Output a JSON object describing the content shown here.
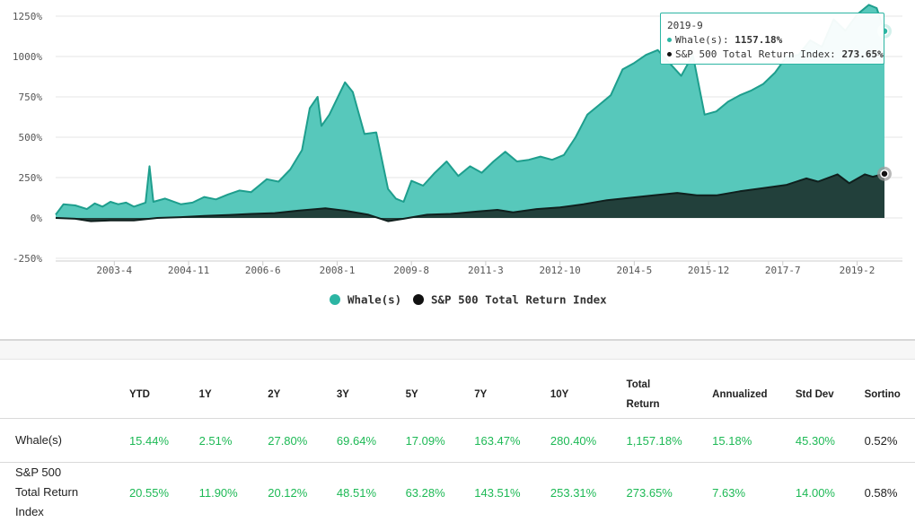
{
  "chart_data": {
    "type": "area",
    "x_tick_labels": [
      "2003-4",
      "2004-11",
      "2006-6",
      "2008-1",
      "2009-8",
      "2011-3",
      "2012-10",
      "2014-5",
      "2015-12",
      "2017-7",
      "2019-2"
    ],
    "y_tick_labels": [
      "1250%",
      "1000%",
      "750%",
      "500%",
      "250%",
      "0%",
      "-250%"
    ],
    "ylim": [
      -250,
      1250
    ],
    "grid": true,
    "legend_position": "bottom-center",
    "series": [
      {
        "name": "Whale(s)",
        "color": "#2cb5a3",
        "points": [
          [
            "2002-1",
            20
          ],
          [
            "2002-3",
            85
          ],
          [
            "2002-6",
            78
          ],
          [
            "2002-9",
            55
          ],
          [
            "2002-11",
            90
          ],
          [
            "2003-1",
            70
          ],
          [
            "2003-3",
            100
          ],
          [
            "2003-5",
            85
          ],
          [
            "2003-7",
            95
          ],
          [
            "2003-9",
            70
          ],
          [
            "2003-12",
            95
          ],
          [
            "2004-1",
            320
          ],
          [
            "2004-2",
            100
          ],
          [
            "2004-5",
            120
          ],
          [
            "2004-9",
            85
          ],
          [
            "2004-12",
            95
          ],
          [
            "2005-3",
            130
          ],
          [
            "2005-6",
            115
          ],
          [
            "2005-9",
            145
          ],
          [
            "2005-12",
            170
          ],
          [
            "2006-3",
            160
          ],
          [
            "2006-5",
            200
          ],
          [
            "2006-7",
            240
          ],
          [
            "2006-10",
            225
          ],
          [
            "2007-1",
            300
          ],
          [
            "2007-4",
            420
          ],
          [
            "2007-6",
            680
          ],
          [
            "2007-8",
            750
          ],
          [
            "2007-9",
            570
          ],
          [
            "2007-11",
            640
          ],
          [
            "2008-1",
            740
          ],
          [
            "2008-3",
            840
          ],
          [
            "2008-5",
            780
          ],
          [
            "2008-8",
            520
          ],
          [
            "2008-11",
            530
          ],
          [
            "2009-2",
            180
          ],
          [
            "2009-4",
            120
          ],
          [
            "2009-6",
            100
          ],
          [
            "2009-8",
            230
          ],
          [
            "2009-11",
            200
          ],
          [
            "2010-2",
            280
          ],
          [
            "2010-5",
            350
          ],
          [
            "2010-8",
            260
          ],
          [
            "2010-11",
            320
          ],
          [
            "2011-2",
            280
          ],
          [
            "2011-5",
            350
          ],
          [
            "2011-8",
            410
          ],
          [
            "2011-11",
            350
          ],
          [
            "2012-2",
            360
          ],
          [
            "2012-5",
            380
          ],
          [
            "2012-8",
            360
          ],
          [
            "2012-11",
            390
          ],
          [
            "2013-2",
            500
          ],
          [
            "2013-5",
            640
          ],
          [
            "2013-8",
            700
          ],
          [
            "2013-11",
            760
          ],
          [
            "2014-2",
            920
          ],
          [
            "2014-5",
            960
          ],
          [
            "2014-8",
            1010
          ],
          [
            "2014-11",
            1040
          ],
          [
            "2015-2",
            960
          ],
          [
            "2015-5",
            880
          ],
          [
            "2015-8",
            1010
          ],
          [
            "2015-11",
            640
          ],
          [
            "2016-2",
            660
          ],
          [
            "2016-5",
            720
          ],
          [
            "2016-8",
            760
          ],
          [
            "2016-11",
            790
          ],
          [
            "2017-2",
            830
          ],
          [
            "2017-5",
            900
          ],
          [
            "2017-8",
            1000
          ],
          [
            "2017-11",
            1010
          ],
          [
            "2018-2",
            1100
          ],
          [
            "2018-5",
            1060
          ],
          [
            "2018-8",
            1230
          ],
          [
            "2018-11",
            1160
          ],
          [
            "2019-2",
            1260
          ],
          [
            "2019-5",
            1320
          ],
          [
            "2019-7",
            1300
          ],
          [
            "2019-9",
            1157.18
          ]
        ]
      },
      {
        "name": "S&P 500 Total Return Index",
        "color": "#17302c",
        "points": [
          [
            "2002-1",
            0
          ],
          [
            "2002-6",
            -5
          ],
          [
            "2002-10",
            -20
          ],
          [
            "2003-3",
            -15
          ],
          [
            "2003-9",
            -15
          ],
          [
            "2004-3",
            0
          ],
          [
            "2004-9",
            5
          ],
          [
            "2005-3",
            12
          ],
          [
            "2005-9",
            18
          ],
          [
            "2006-3",
            25
          ],
          [
            "2006-9",
            30
          ],
          [
            "2007-3",
            45
          ],
          [
            "2007-10",
            60
          ],
          [
            "2008-3",
            45
          ],
          [
            "2008-9",
            20
          ],
          [
            "2009-2",
            -20
          ],
          [
            "2009-6",
            -5
          ],
          [
            "2009-12",
            20
          ],
          [
            "2010-6",
            25
          ],
          [
            "2011-1",
            40
          ],
          [
            "2011-6",
            50
          ],
          [
            "2011-10",
            35
          ],
          [
            "2012-4",
            55
          ],
          [
            "2012-10",
            65
          ],
          [
            "2013-4",
            85
          ],
          [
            "2013-10",
            110
          ],
          [
            "2014-4",
            125
          ],
          [
            "2014-10",
            140
          ],
          [
            "2015-4",
            155
          ],
          [
            "2015-9",
            140
          ],
          [
            "2016-2",
            140
          ],
          [
            "2016-8",
            165
          ],
          [
            "2017-2",
            185
          ],
          [
            "2017-8",
            205
          ],
          [
            "2018-1",
            245
          ],
          [
            "2018-4",
            225
          ],
          [
            "2018-9",
            270
          ],
          [
            "2018-12",
            215
          ],
          [
            "2019-4",
            270
          ],
          [
            "2019-6",
            255
          ],
          [
            "2019-9",
            273.65
          ]
        ]
      }
    ]
  },
  "tooltip": {
    "date": "2019-9",
    "rows": [
      {
        "label": "Whale(s): ",
        "value": "1157.18%",
        "color": "#2cb5a3"
      },
      {
        "label": "S&P 500 Total Return Index: ",
        "value": "273.65%",
        "color": "#111111"
      }
    ]
  },
  "table": {
    "headers": [
      "",
      "YTD",
      "1Y",
      "2Y",
      "3Y",
      "5Y",
      "7Y",
      "10Y",
      "Total\nReturn",
      "Annualized",
      "Std Dev",
      "Sortino"
    ],
    "rows": [
      {
        "name": "Whale(s)",
        "values": [
          "15.44%",
          "2.51%",
          "27.80%",
          "69.64%",
          "17.09%",
          "163.47%",
          "280.40%",
          "1,157.18%",
          "15.18%",
          "45.30%",
          "0.52%"
        ]
      },
      {
        "name": "S&P 500\nTotal Return\nIndex",
        "values": [
          "20.55%",
          "11.90%",
          "20.12%",
          "48.51%",
          "63.28%",
          "143.51%",
          "253.31%",
          "273.65%",
          "7.63%",
          "14.00%",
          "0.58%"
        ]
      }
    ]
  }
}
